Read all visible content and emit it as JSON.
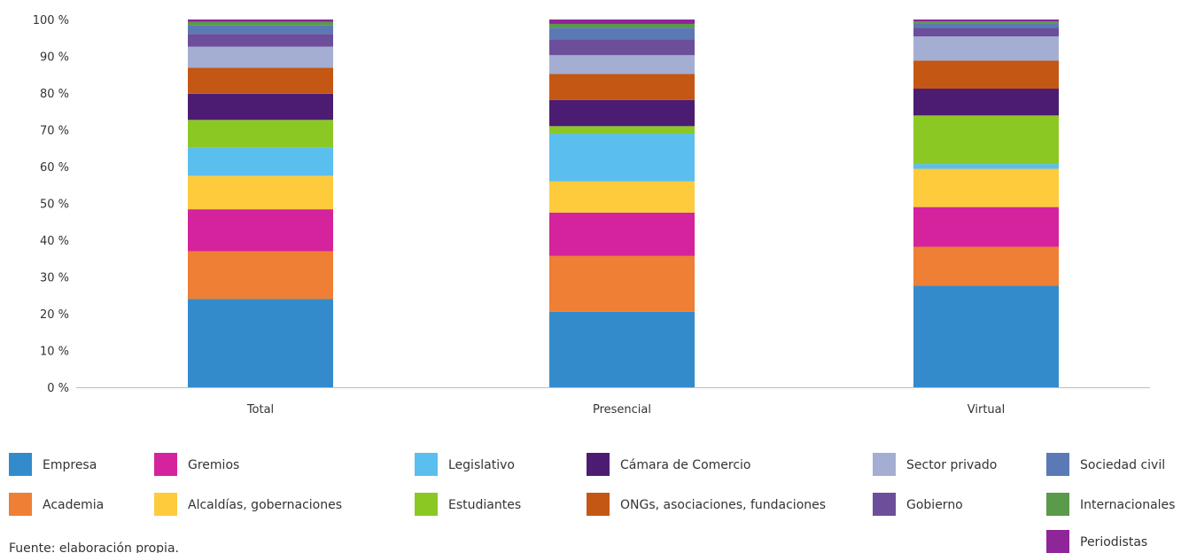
{
  "chart_data": {
    "type": "bar",
    "stacked": true,
    "categories": [
      "Total",
      "Presencial",
      "Virtual"
    ],
    "ylim": [
      0,
      100
    ],
    "yticks": [
      "0 %",
      "10 %",
      "20 %",
      "30 %",
      "40 %",
      "50 %",
      "60 %",
      "70 %",
      "80 %",
      "90 %",
      "100 %"
    ],
    "grid": false,
    "legend_position": "bottom",
    "series": [
      {
        "name": "Empresa",
        "color": "#348bcc",
        "values": [
          24,
          20.5,
          27.6
        ]
      },
      {
        "name": "Academia",
        "color": "#ee7f34",
        "values": [
          13,
          15.2,
          10.6
        ]
      },
      {
        "name": "Gremios",
        "color": "#d4239d",
        "values": [
          11.4,
          11.8,
          10.8
        ]
      },
      {
        "name": "Alcaldías, gobernaciones",
        "color": "#fdcb3b",
        "values": [
          9.1,
          8.5,
          10.4
        ]
      },
      {
        "name": "Legislativo",
        "color": "#5abeef",
        "values": [
          7.6,
          12.9,
          1.3
        ]
      },
      {
        "name": "Estudiantes",
        "color": "#8bc824",
        "values": [
          7.6,
          2.1,
          13.2
        ]
      },
      {
        "name": "Cámara de Comercio",
        "color": "#4b1c72",
        "values": [
          7.1,
          7.1,
          7.3
        ]
      },
      {
        "name": "ONGs, asociaciones, fundaciones",
        "color": "#c45714",
        "values": [
          7.1,
          7.1,
          7.6
        ]
      },
      {
        "name": "Sector privado",
        "color": "#a4aed2",
        "values": [
          5.7,
          5.1,
          6.6
        ]
      },
      {
        "name": "Gobierno",
        "color": "#6c4e9a",
        "values": [
          3.5,
          4.3,
          2.3
        ]
      },
      {
        "name": "Sociedad civil",
        "color": "#5b79b4",
        "values": [
          2.3,
          3.2,
          1.1
        ]
      },
      {
        "name": "Internacionales",
        "color": "#5a9a4a",
        "values": [
          1.0,
          1.0,
          0.7
        ]
      },
      {
        "name": "Periodistas",
        "color": "#8e2699",
        "values": [
          0.6,
          1.2,
          0.5
        ]
      }
    ],
    "legend_order": [
      "Empresa",
      "Gremios",
      "Legislativo",
      "Cámara de Comercio",
      "Sector privado",
      "Sociedad civil",
      "Academia",
      "Alcaldías, gobernaciones",
      "Estudiantes",
      "ONGs, asociaciones, fundaciones",
      "Gobierno",
      "Internacionales",
      "Periodistas"
    ]
  },
  "source_note": "Fuente: elaboración propia."
}
